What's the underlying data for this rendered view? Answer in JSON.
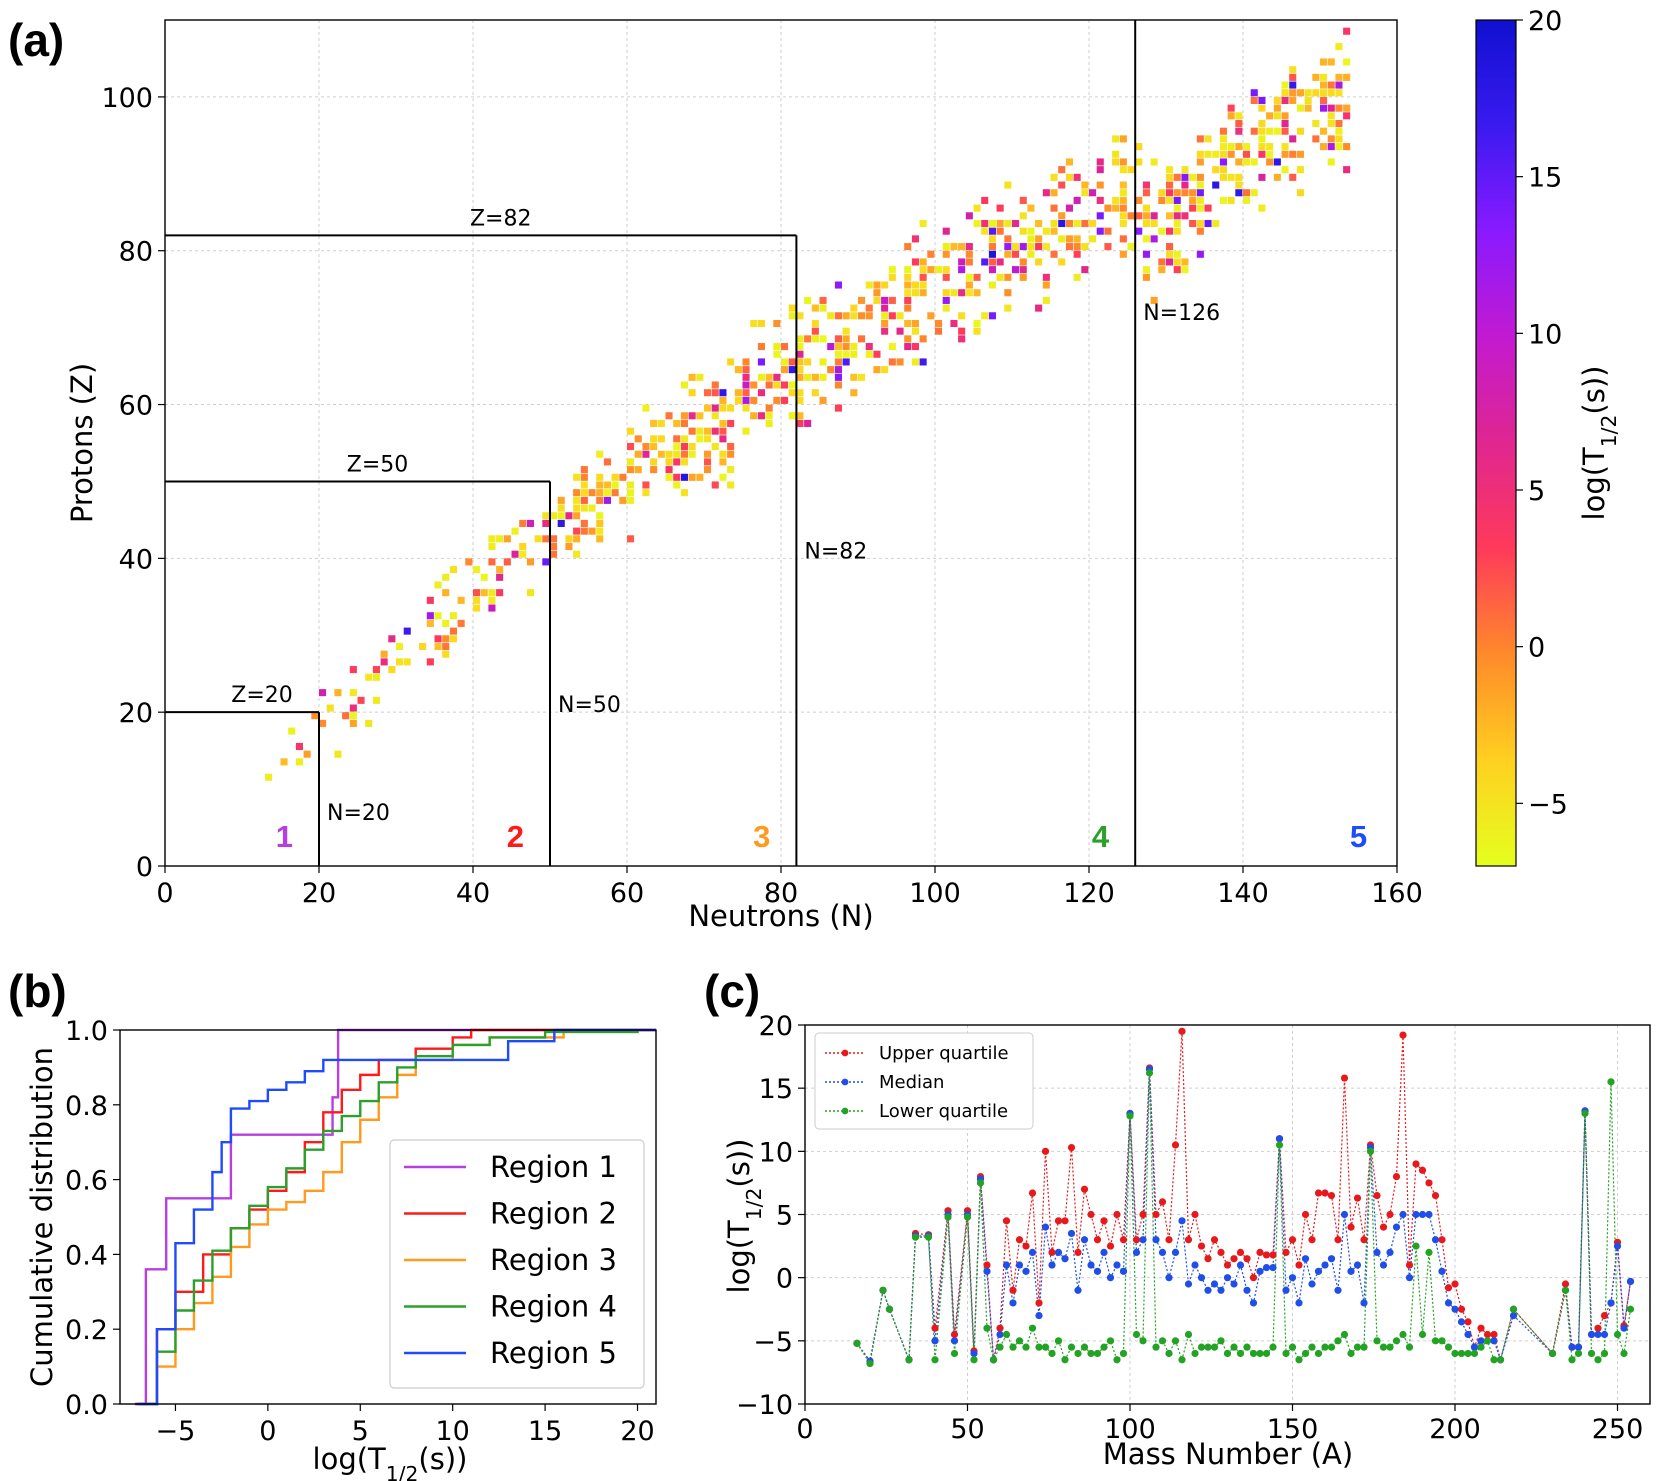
{
  "colors": {
    "region1": "#b63fe0",
    "region2": "#ff1a1a",
    "region3": "#ff9a1e",
    "region4": "#2ca02c",
    "region5": "#1f4bff",
    "upper": "#e8191c",
    "median": "#1f4fe8",
    "lower": "#23a323",
    "colormap": [
      "#e5ff1e",
      "#ffd020",
      "#ff8a2a",
      "#ff3a5a",
      "#e02690",
      "#c21ad0",
      "#8a1aff",
      "#3a1af0",
      "#1010d0"
    ]
  },
  "panels": {
    "a_label": "(a)",
    "b_label": "(b)",
    "c_label": "(c)"
  },
  "chart_data": [
    {
      "id": "a",
      "type": "heatmap",
      "xlabel": "Neutrons (N)",
      "ylabel": "Protons (Z)",
      "xlim": [
        0,
        160
      ],
      "ylim": [
        0,
        110
      ],
      "xticks": [
        0,
        20,
        40,
        60,
        80,
        100,
        120,
        140,
        160
      ],
      "yticks": [
        0,
        20,
        40,
        60,
        80,
        100
      ],
      "grid": true,
      "colorbar": {
        "label": "log(T1/2(s))",
        "range": [
          -7,
          20
        ],
        "ticks": [
          -5,
          0,
          5,
          10,
          15,
          20
        ],
        "tick_labels": [
          "−5",
          "0",
          "5",
          "10",
          "15",
          "20"
        ]
      },
      "magic_lines": [
        {
          "label": "Z=20",
          "orientation": "horizontal",
          "value": 20,
          "from": 0,
          "to": 20
        },
        {
          "label": "Z=50",
          "orientation": "horizontal",
          "value": 50,
          "from": 0,
          "to": 50
        },
        {
          "label": "Z=82",
          "orientation": "horizontal",
          "value": 82,
          "from": 0,
          "to": 82
        },
        {
          "label": "N=20",
          "orientation": "vertical",
          "value": 20,
          "from": 0,
          "to": 20
        },
        {
          "label": "N=50",
          "orientation": "vertical",
          "value": 50,
          "from": 0,
          "to": 50
        },
        {
          "label": "N=82",
          "orientation": "vertical",
          "value": 82,
          "from": 0,
          "to": 82
        },
        {
          "label": "N=126",
          "orientation": "vertical",
          "value": 126,
          "from": 0,
          "to": 110
        }
      ],
      "regions": [
        {
          "label": "1",
          "n": 15.5
        },
        {
          "label": "2",
          "n": 45.5
        },
        {
          "label": "3",
          "n": 77.5
        },
        {
          "label": "4",
          "n": 121.5
        },
        {
          "label": "5",
          "n": 155
        }
      ],
      "band_points_N_Z": [
        [
          9,
          7
        ],
        [
          13,
          11
        ],
        [
          17,
          15
        ],
        [
          20,
          19
        ],
        [
          23,
          21
        ],
        [
          26,
          24
        ],
        [
          30,
          27
        ],
        [
          35,
          31
        ],
        [
          40,
          35
        ],
        [
          45,
          39
        ],
        [
          50,
          43
        ],
        [
          55,
          47
        ],
        [
          60,
          50
        ],
        [
          65,
          53
        ],
        [
          70,
          56
        ],
        [
          75,
          60
        ],
        [
          80,
          63
        ],
        [
          84,
          65
        ],
        [
          88,
          67
        ],
        [
          92,
          70
        ],
        [
          96,
          72
        ],
        [
          100,
          75
        ],
        [
          104,
          77
        ],
        [
          108,
          79
        ],
        [
          112,
          80
        ],
        [
          116,
          82
        ],
        [
          120,
          84
        ],
        [
          124,
          86
        ],
        [
          128,
          82
        ],
        [
          142,
          94
        ],
        [
          146,
          95
        ],
        [
          150,
          97
        ],
        [
          153,
          99
        ]
      ]
    },
    {
      "id": "b",
      "type": "line",
      "xlabel": "log(T1/2(s))",
      "ylabel": "Cumulative distribution",
      "xlim": [
        -8,
        21
      ],
      "ylim": [
        0,
        1
      ],
      "xticks": [
        -5,
        0,
        5,
        10,
        15,
        20
      ],
      "xtick_labels": [
        "−5",
        "0",
        "5",
        "10",
        "15",
        "20"
      ],
      "yticks": [
        0.0,
        0.2,
        0.4,
        0.6,
        0.8,
        1.0
      ],
      "ytick_labels": [
        "0.0",
        "0.2",
        "0.4",
        "0.6",
        "0.8",
        "1.0"
      ],
      "grid": false,
      "legend_position": "bottom-right",
      "series": [
        {
          "name": "Region 1",
          "x": [
            -7.0,
            -6.6,
            -5.5,
            -3.0,
            -2.0,
            3.5,
            3.8,
            21
          ],
          "y": [
            0.0,
            0.36,
            0.55,
            0.55,
            0.72,
            0.82,
            1.0,
            1.0
          ]
        },
        {
          "name": "Region 2",
          "x": [
            -7.2,
            -6.0,
            -5.0,
            -3.5,
            -2.0,
            -1.0,
            0.0,
            1.0,
            2.0,
            3.0,
            4.0,
            5.0,
            6.0,
            8.0,
            10.0,
            11.0,
            21
          ],
          "y": [
            0.0,
            0.2,
            0.3,
            0.4,
            0.47,
            0.52,
            0.57,
            0.62,
            0.7,
            0.78,
            0.84,
            0.88,
            0.92,
            0.95,
            0.98,
            1.0,
            1.0
          ]
        },
        {
          "name": "Region 3",
          "x": [
            -7.0,
            -6.0,
            -5.0,
            -4.0,
            -3.0,
            -2.0,
            -1.0,
            0.0,
            1.0,
            2.0,
            3.0,
            4.0,
            5.0,
            6.0,
            7.0,
            8.0,
            10.0,
            12.0,
            16.0,
            20.0
          ],
          "y": [
            0.0,
            0.1,
            0.2,
            0.27,
            0.34,
            0.42,
            0.48,
            0.52,
            0.54,
            0.57,
            0.62,
            0.7,
            0.76,
            0.82,
            0.88,
            0.92,
            0.96,
            0.98,
            0.995,
            1.0
          ]
        },
        {
          "name": "Region 4",
          "x": [
            -7.0,
            -6.0,
            -5.0,
            -4.0,
            -3.0,
            -2.0,
            -1.0,
            0.0,
            1.0,
            2.0,
            3.0,
            4.0,
            5.0,
            6.0,
            7.0,
            8.0,
            10.0,
            12.0,
            15.0,
            20.0
          ],
          "y": [
            0.0,
            0.14,
            0.25,
            0.33,
            0.41,
            0.47,
            0.53,
            0.58,
            0.63,
            0.68,
            0.73,
            0.77,
            0.81,
            0.86,
            0.9,
            0.93,
            0.96,
            0.98,
            0.995,
            1.0
          ]
        },
        {
          "name": "Region 5",
          "x": [
            -7.1,
            -6.0,
            -5.0,
            -4.0,
            -3.0,
            -2.5,
            -2.0,
            -1.0,
            0.0,
            1.0,
            2.0,
            3.0,
            5.0,
            7.5,
            12.0,
            13.0,
            15.5,
            21
          ],
          "y": [
            0.0,
            0.2,
            0.43,
            0.52,
            0.62,
            0.7,
            0.79,
            0.81,
            0.84,
            0.86,
            0.89,
            0.92,
            0.92,
            0.92,
            0.92,
            0.97,
            1.0,
            1.0
          ]
        }
      ]
    },
    {
      "id": "c",
      "type": "line",
      "xlabel": "Mass Number (A)",
      "ylabel": "log(T1/2(s))",
      "xlim": [
        0,
        260
      ],
      "ylim": [
        -10,
        20
      ],
      "xticks": [
        0,
        50,
        100,
        150,
        200,
        250
      ],
      "yticks": [
        -10,
        -5,
        0,
        5,
        10,
        15,
        20
      ],
      "ytick_labels": [
        "−10",
        "−5",
        "0",
        "5",
        "10",
        "15",
        "20"
      ],
      "grid": true,
      "legend_position": "top-left",
      "x": [
        16,
        20,
        24,
        26,
        32,
        34,
        38,
        40,
        44,
        46,
        50,
        52,
        54,
        56,
        58,
        60,
        62,
        64,
        66,
        68,
        70,
        72,
        74,
        76,
        78,
        80,
        82,
        84,
        86,
        88,
        90,
        92,
        94,
        96,
        98,
        100,
        102,
        104,
        106,
        108,
        110,
        112,
        114,
        116,
        118,
        120,
        122,
        124,
        126,
        128,
        130,
        132,
        134,
        136,
        138,
        140,
        142,
        144,
        146,
        148,
        150,
        152,
        154,
        156,
        158,
        160,
        162,
        164,
        166,
        168,
        170,
        172,
        174,
        176,
        178,
        180,
        182,
        184,
        186,
        188,
        190,
        192,
        194,
        196,
        198,
        200,
        202,
        204,
        206,
        208,
        210,
        212,
        214,
        218,
        230,
        234,
        236,
        238,
        240,
        242,
        244,
        246,
        248,
        250,
        252,
        254
      ],
      "series": [
        {
          "name": "Upper quartile",
          "values": [
            -5.2,
            -6.6,
            -1.0,
            -2.5,
            -6.5,
            3.5,
            3.4,
            -4.0,
            5.3,
            -4.5,
            5.3,
            -5.8,
            8.0,
            1.0,
            -6.5,
            -4.0,
            4.5,
            -1.0,
            3.0,
            2.5,
            6.7,
            -2.0,
            10.0,
            2.0,
            4.5,
            4.5,
            10.3,
            2.0,
            7.0,
            5.0,
            3.0,
            4.5,
            2.5,
            5.0,
            3.0,
            13.0,
            3.0,
            5.0,
            16.6,
            5.0,
            6.0,
            3.0,
            10.5,
            19.5,
            3.0,
            5.0,
            2.5,
            1.5,
            3.0,
            2.0,
            1.0,
            1.5,
            2.0,
            1.5,
            0.0,
            2.0,
            1.8,
            1.8,
            11.0,
            2.0,
            3.0,
            1.0,
            5.0,
            3.0,
            6.7,
            6.7,
            6.5,
            3.0,
            15.8,
            4.0,
            6.3,
            3.0,
            10.5,
            6.5,
            4.0,
            5.0,
            8.0,
            19.2,
            1.0,
            9.0,
            8.5,
            7.5,
            6.5,
            3.0,
            -0.8,
            -0.5,
            -2.5,
            -3.5,
            -5.5,
            -4.0,
            -4.5,
            -4.5,
            -6.5,
            -2.5,
            -6.0,
            -0.5,
            -5.5,
            -5.5,
            13.2,
            -4.5,
            -4.0,
            -3.0,
            -2.0,
            2.8,
            -3.8,
            -0.3
          ]
        },
        {
          "name": "Median",
          "values": [
            -5.2,
            -6.6,
            -1.0,
            -2.5,
            -6.5,
            3.3,
            3.3,
            -5.0,
            5.0,
            -5.0,
            5.0,
            -6.0,
            7.8,
            0.5,
            -6.5,
            -4.5,
            1.0,
            -2.0,
            1.0,
            0.5,
            2.0,
            -3.0,
            4.0,
            1.0,
            2.0,
            1.5,
            3.5,
            -1.0,
            3.0,
            1.0,
            0.5,
            2.0,
            0.0,
            1.0,
            0.5,
            13.0,
            2.0,
            3.0,
            16.5,
            3.0,
            2.0,
            0.0,
            2.0,
            4.5,
            -0.5,
            1.0,
            0.0,
            -1.0,
            -0.5,
            -1.0,
            0.0,
            -0.5,
            1.0,
            -1.0,
            -2.0,
            0.5,
            0.8,
            0.8,
            11.0,
            -1.0,
            0.0,
            -2.0,
            1.5,
            -0.5,
            0.5,
            1.0,
            1.5,
            -1.0,
            5.0,
            0.5,
            1.0,
            -2.0,
            10.3,
            2.0,
            1.0,
            2.0,
            4.0,
            5.0,
            0.0,
            5.0,
            5.0,
            5.0,
            3.0,
            0.5,
            -2.0,
            -2.5,
            -3.5,
            -4.5,
            -5.5,
            -5.0,
            -5.0,
            -5.0,
            -6.5,
            -3.0,
            -6.0,
            -1.0,
            -5.5,
            -5.5,
            13.2,
            -4.5,
            -4.5,
            -4.5,
            -2.0,
            2.5,
            -4.0,
            -0.3
          ]
        },
        {
          "name": "Lower quartile",
          "values": [
            -5.2,
            -6.8,
            -1.0,
            -2.5,
            -6.5,
            3.2,
            3.2,
            -6.5,
            4.8,
            -6.0,
            4.8,
            -6.5,
            7.5,
            -4.0,
            -6.5,
            -5.5,
            -4.5,
            -5.5,
            -5.0,
            -5.5,
            -4.0,
            -5.5,
            -5.5,
            -6.0,
            -5.0,
            -6.5,
            -5.5,
            -6.0,
            -5.5,
            -6.0,
            -6.0,
            -5.5,
            -5.0,
            -6.5,
            -6.0,
            12.8,
            -4.5,
            -5.0,
            16.2,
            -5.5,
            -5.0,
            -6.0,
            -5.0,
            -6.5,
            -4.5,
            -6.0,
            -5.5,
            -5.5,
            -5.5,
            -5.0,
            -6.0,
            -5.5,
            -6.0,
            -5.5,
            -6.0,
            -6.0,
            -6.0,
            -5.5,
            10.5,
            -6.0,
            -5.5,
            -6.5,
            -6.0,
            -5.5,
            -6.0,
            -5.5,
            -5.5,
            -5.0,
            -4.5,
            -6.0,
            -5.5,
            -5.5,
            10.0,
            -5.0,
            -5.5,
            -5.5,
            -5.0,
            -4.5,
            -5.5,
            2.5,
            -4.5,
            2.0,
            -5.0,
            -5.0,
            -5.5,
            -6.0,
            -6.0,
            -6.0,
            -6.0,
            -5.5,
            -5.0,
            -6.5,
            -6.5,
            -2.5,
            -6.0,
            -1.0,
            -6.5,
            -6.0,
            13.0,
            -6.0,
            -6.5,
            -6.0,
            15.5,
            -4.5,
            -6.0,
            -2.5
          ]
        }
      ]
    }
  ]
}
